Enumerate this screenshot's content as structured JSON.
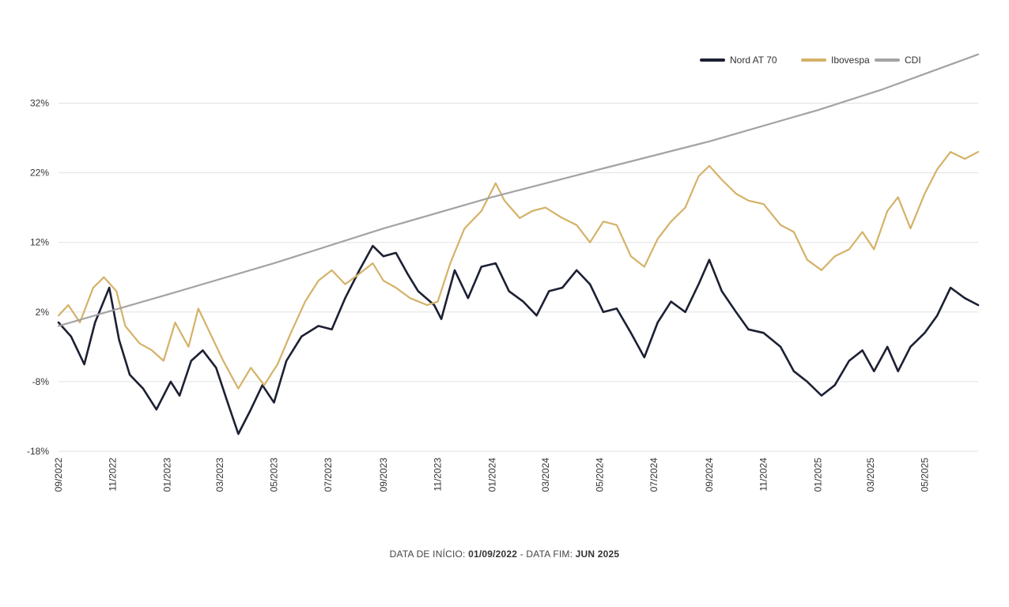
{
  "chart_data": {
    "type": "line",
    "ylim": [
      -18,
      40
    ],
    "y_ticks": [
      "32%",
      "22%",
      "12%",
      "2%",
      "-8%",
      "-18%"
    ],
    "y_tick_values": [
      32,
      22,
      12,
      2,
      -8,
      -18
    ],
    "x_range": [
      "2022-09-01",
      "2025-06-30"
    ],
    "x_ticks": [
      {
        "label": "09/2022",
        "date": "2022-09-01"
      },
      {
        "label": "11/2022",
        "date": "2022-11-01"
      },
      {
        "label": "01/2023",
        "date": "2023-01-01"
      },
      {
        "label": "03/2023",
        "date": "2023-03-01"
      },
      {
        "label": "05/2023",
        "date": "2023-05-01"
      },
      {
        "label": "07/2023",
        "date": "2023-07-01"
      },
      {
        "label": "09/2023",
        "date": "2023-09-01"
      },
      {
        "label": "11/2023",
        "date": "2023-11-01"
      },
      {
        "label": "01/2024",
        "date": "2024-01-01"
      },
      {
        "label": "03/2024",
        "date": "2024-03-01"
      },
      {
        "label": "05/2024",
        "date": "2024-05-01"
      },
      {
        "label": "07/2024",
        "date": "2024-07-01"
      },
      {
        "label": "09/2024",
        "date": "2024-09-01"
      },
      {
        "label": "11/2024",
        "date": "2024-11-01"
      },
      {
        "label": "01/2025",
        "date": "2025-01-01"
      },
      {
        "label": "03/2025",
        "date": "2025-03-01"
      },
      {
        "label": "05/2025",
        "date": "2025-05-01"
      }
    ],
    "grid": "horizontal",
    "legend_position": "top-right",
    "series": [
      {
        "name": "Nord AT 70",
        "color": "#1c2033",
        "points": [
          [
            "2022-09-01",
            0.5
          ],
          [
            "2022-09-15",
            -1.5
          ],
          [
            "2022-09-30",
            -5.5
          ],
          [
            "2022-10-12",
            0.5
          ],
          [
            "2022-10-28",
            5.5
          ],
          [
            "2022-11-08",
            -2.0
          ],
          [
            "2022-11-20",
            -7.0
          ],
          [
            "2022-12-05",
            -9.0
          ],
          [
            "2022-12-20",
            -12.0
          ],
          [
            "2023-01-05",
            -8.0
          ],
          [
            "2023-01-15",
            -10.0
          ],
          [
            "2023-01-28",
            -5.0
          ],
          [
            "2023-02-10",
            -3.5
          ],
          [
            "2023-02-25",
            -6.0
          ],
          [
            "2023-03-10",
            -11.0
          ],
          [
            "2023-03-22",
            -15.5
          ],
          [
            "2023-04-05",
            -12.0
          ],
          [
            "2023-04-18",
            -8.5
          ],
          [
            "2023-05-01",
            -11.0
          ],
          [
            "2023-05-15",
            -5.0
          ],
          [
            "2023-06-01",
            -1.5
          ],
          [
            "2023-06-20",
            0.0
          ],
          [
            "2023-07-05",
            -0.5
          ],
          [
            "2023-07-20",
            4.0
          ],
          [
            "2023-08-05",
            8.0
          ],
          [
            "2023-08-20",
            11.5
          ],
          [
            "2023-09-01",
            10.0
          ],
          [
            "2023-09-15",
            10.5
          ],
          [
            "2023-09-28",
            7.5
          ],
          [
            "2023-10-10",
            5.0
          ],
          [
            "2023-10-28",
            3.0
          ],
          [
            "2023-11-05",
            1.0
          ],
          [
            "2023-11-20",
            8.0
          ],
          [
            "2023-12-05",
            4.0
          ],
          [
            "2023-12-20",
            8.5
          ],
          [
            "2024-01-05",
            9.0
          ],
          [
            "2024-01-20",
            5.0
          ],
          [
            "2024-02-05",
            3.5
          ],
          [
            "2024-02-20",
            1.5
          ],
          [
            "2024-03-05",
            5.0
          ],
          [
            "2024-03-20",
            5.5
          ],
          [
            "2024-04-05",
            8.0
          ],
          [
            "2024-04-20",
            6.0
          ],
          [
            "2024-05-05",
            2.0
          ],
          [
            "2024-05-20",
            2.5
          ],
          [
            "2024-06-05",
            -1.0
          ],
          [
            "2024-06-20",
            -4.5
          ],
          [
            "2024-07-05",
            0.5
          ],
          [
            "2024-07-20",
            3.5
          ],
          [
            "2024-08-05",
            2.0
          ],
          [
            "2024-08-20",
            6.0
          ],
          [
            "2024-09-01",
            9.5
          ],
          [
            "2024-09-15",
            5.0
          ],
          [
            "2024-10-01",
            2.0
          ],
          [
            "2024-10-15",
            -0.5
          ],
          [
            "2024-11-01",
            -1.0
          ],
          [
            "2024-11-20",
            -3.0
          ],
          [
            "2024-12-05",
            -6.5
          ],
          [
            "2024-12-20",
            -8.0
          ],
          [
            "2025-01-05",
            -10.0
          ],
          [
            "2025-01-20",
            -8.5
          ],
          [
            "2025-02-05",
            -5.0
          ],
          [
            "2025-02-20",
            -3.5
          ],
          [
            "2025-03-05",
            -6.5
          ],
          [
            "2025-03-20",
            -3.0
          ],
          [
            "2025-04-01",
            -6.5
          ],
          [
            "2025-04-15",
            -3.0
          ],
          [
            "2025-05-01",
            -1.0
          ],
          [
            "2025-05-15",
            1.5
          ],
          [
            "2025-05-30",
            5.5
          ],
          [
            "2025-06-15",
            4.0
          ],
          [
            "2025-06-30",
            3.0
          ]
        ]
      },
      {
        "name": "Ibovespa",
        "color": "#d4b268",
        "points": [
          [
            "2022-09-01",
            1.5
          ],
          [
            "2022-09-12",
            3.0
          ],
          [
            "2022-09-25",
            0.5
          ],
          [
            "2022-10-10",
            5.5
          ],
          [
            "2022-10-22",
            7.0
          ],
          [
            "2022-11-05",
            5.0
          ],
          [
            "2022-11-15",
            0.0
          ],
          [
            "2022-12-01",
            -2.5
          ],
          [
            "2022-12-15",
            -3.5
          ],
          [
            "2022-12-28",
            -5.0
          ],
          [
            "2023-01-10",
            0.5
          ],
          [
            "2023-01-25",
            -3.0
          ],
          [
            "2023-02-05",
            2.5
          ],
          [
            "2023-02-20",
            -1.5
          ],
          [
            "2023-03-05",
            -5.0
          ],
          [
            "2023-03-22",
            -9.0
          ],
          [
            "2023-04-05",
            -6.0
          ],
          [
            "2023-04-20",
            -8.5
          ],
          [
            "2023-05-05",
            -5.5
          ],
          [
            "2023-05-20",
            -1.0
          ],
          [
            "2023-06-05",
            3.5
          ],
          [
            "2023-06-20",
            6.5
          ],
          [
            "2023-07-05",
            8.0
          ],
          [
            "2023-07-20",
            6.0
          ],
          [
            "2023-08-05",
            7.5
          ],
          [
            "2023-08-20",
            9.0
          ],
          [
            "2023-09-01",
            6.5
          ],
          [
            "2023-09-15",
            5.5
          ],
          [
            "2023-10-01",
            4.0
          ],
          [
            "2023-10-20",
            3.0
          ],
          [
            "2023-11-01",
            3.5
          ],
          [
            "2023-11-15",
            9.0
          ],
          [
            "2023-12-01",
            14.0
          ],
          [
            "2023-12-20",
            16.5
          ],
          [
            "2024-01-05",
            20.5
          ],
          [
            "2024-01-15",
            18.0
          ],
          [
            "2024-02-01",
            15.5
          ],
          [
            "2024-02-15",
            16.5
          ],
          [
            "2024-03-01",
            17.0
          ],
          [
            "2024-03-20",
            15.5
          ],
          [
            "2024-04-05",
            14.5
          ],
          [
            "2024-04-20",
            12.0
          ],
          [
            "2024-05-05",
            15.0
          ],
          [
            "2024-05-20",
            14.5
          ],
          [
            "2024-06-05",
            10.0
          ],
          [
            "2024-06-20",
            8.5
          ],
          [
            "2024-07-05",
            12.5
          ],
          [
            "2024-07-20",
            15.0
          ],
          [
            "2024-08-05",
            17.0
          ],
          [
            "2024-08-20",
            21.5
          ],
          [
            "2024-09-01",
            23.0
          ],
          [
            "2024-09-15",
            21.0
          ],
          [
            "2024-10-01",
            19.0
          ],
          [
            "2024-10-15",
            18.0
          ],
          [
            "2024-11-01",
            17.5
          ],
          [
            "2024-11-20",
            14.5
          ],
          [
            "2024-12-05",
            13.5
          ],
          [
            "2024-12-20",
            9.5
          ],
          [
            "2025-01-05",
            8.0
          ],
          [
            "2025-01-20",
            10.0
          ],
          [
            "2025-02-05",
            11.0
          ],
          [
            "2025-02-20",
            13.5
          ],
          [
            "2025-03-05",
            11.0
          ],
          [
            "2025-03-20",
            16.5
          ],
          [
            "2025-04-01",
            18.5
          ],
          [
            "2025-04-15",
            14.0
          ],
          [
            "2025-05-01",
            19.0
          ],
          [
            "2025-05-15",
            22.5
          ],
          [
            "2025-05-30",
            25.0
          ],
          [
            "2025-06-15",
            24.0
          ],
          [
            "2025-06-30",
            25.0
          ]
        ]
      },
      {
        "name": "CDI",
        "color": "#a3a3a3",
        "points": [
          [
            "2022-09-01",
            0.0
          ],
          [
            "2023-01-01",
            4.5
          ],
          [
            "2023-05-01",
            9.0
          ],
          [
            "2023-09-01",
            14.0
          ],
          [
            "2024-01-01",
            18.5
          ],
          [
            "2024-05-01",
            22.5
          ],
          [
            "2024-09-01",
            26.5
          ],
          [
            "2025-01-01",
            31.0
          ],
          [
            "2025-03-15",
            34.0
          ],
          [
            "2025-06-30",
            39.0
          ]
        ]
      }
    ]
  },
  "footer": {
    "start_label": "DATA DE INÍCIO: ",
    "start_value": "01/09/2022",
    "separator": " - DATA FIM: ",
    "end_value": "JUN 2025"
  }
}
